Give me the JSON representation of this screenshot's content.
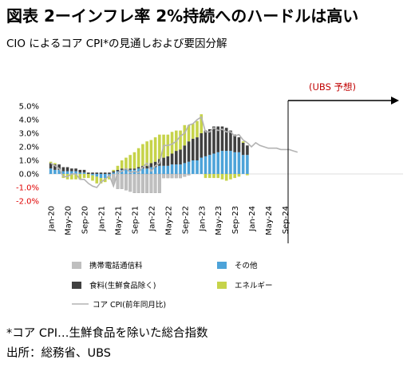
{
  "title": "図表 2ーインフレ率 2%持続へのハードルは高い",
  "subtitle": "CIO によるコア CPI*の見通しおよび要因分解",
  "footnote": "*コア CPI…生鮮食品を除いた総合指数",
  "source": "出所：総務省、UBS",
  "forecast_label": "(UBS 予想)",
  "colors": {
    "mobile": "#bfbfbf",
    "other": "#4da3d9",
    "food": "#404040",
    "energy": "#c6d34a",
    "line": "#b3b3b3",
    "negative_tick": "#e00000",
    "forecast_text": "#c00000"
  },
  "chart_data": {
    "type": "bar",
    "stacked": true,
    "ylim": [
      -2.0,
      5.0
    ],
    "y_ticks": [
      "5.0%",
      "4.0%",
      "3.0%",
      "2.0%",
      "1.0%",
      "0.0%",
      "-1.0%",
      "-2.0%"
    ],
    "x_tick_labels": [
      "Jan-20",
      "May-20",
      "Sep-20",
      "Jan-21",
      "May-21",
      "Sep-21",
      "Jan-22",
      "May-22",
      "Sep-22",
      "Jan-23",
      "May-23",
      "Sep-23",
      "Jan-24",
      "May-24",
      "Sep-24"
    ],
    "legend": [
      "携帯電話通信料",
      "その他",
      "食料(生鮮食品除く)",
      "エネルギー",
      "コア CPI(前年同月比)"
    ],
    "months": [
      "2020-01",
      "2020-02",
      "2020-03",
      "2020-04",
      "2020-05",
      "2020-06",
      "2020-07",
      "2020-08",
      "2020-09",
      "2020-10",
      "2020-11",
      "2020-12",
      "2021-01",
      "2021-02",
      "2021-03",
      "2021-04",
      "2021-05",
      "2021-06",
      "2021-07",
      "2021-08",
      "2021-09",
      "2021-10",
      "2021-11",
      "2021-12",
      "2022-01",
      "2022-02",
      "2022-03",
      "2022-04",
      "2022-05",
      "2022-06",
      "2022-07",
      "2022-08",
      "2022-09",
      "2022-10",
      "2022-11",
      "2022-12",
      "2023-01",
      "2023-02",
      "2023-03",
      "2023-04",
      "2023-05",
      "2023-06",
      "2023-07",
      "2023-08",
      "2023-09",
      "2023-10",
      "2023-11",
      "2023-12"
    ],
    "series": [
      {
        "name": "携帯電話通信料",
        "values": [
          0,
          0,
          0,
          0,
          0,
          0,
          0,
          0,
          0,
          0,
          0,
          0,
          0,
          0,
          0,
          -0.7,
          -1.1,
          -1.1,
          -1.2,
          -1.3,
          -1.4,
          -1.4,
          -1.4,
          -1.4,
          -1.4,
          -1.4,
          -1.4,
          -0.3,
          -0.3,
          -0.3,
          -0.3,
          -0.3,
          -0.2,
          -0.1,
          0,
          0,
          0,
          0,
          0,
          0,
          0,
          0,
          0,
          0,
          0,
          0,
          0,
          0
        ]
      },
      {
        "name": "その他",
        "values": [
          0.4,
          0.3,
          0.3,
          0.2,
          0.2,
          0.2,
          0.2,
          0.1,
          0.1,
          0,
          -0.1,
          -0.2,
          -0.3,
          -0.3,
          -0.2,
          0.1,
          0.2,
          0.3,
          0.3,
          0.3,
          0.3,
          0.4,
          0.4,
          0.4,
          0.5,
          0.5,
          0.6,
          0.6,
          0.6,
          0.7,
          0.7,
          0.7,
          0.8,
          0.9,
          1.0,
          1.0,
          1.2,
          1.3,
          1.4,
          1.5,
          1.6,
          1.7,
          1.7,
          1.7,
          1.6,
          1.6,
          1.4,
          1.4
        ]
      },
      {
        "name": "食料(生鮮食品除く)",
        "values": [
          0.4,
          0.4,
          0.4,
          0.3,
          0.3,
          0.2,
          0.2,
          0.2,
          0.2,
          0.1,
          0.1,
          0.1,
          0.1,
          0.1,
          0.1,
          0.1,
          0.1,
          0.1,
          0.1,
          0.1,
          0.1,
          0.1,
          0.2,
          0.2,
          0.3,
          0.4,
          0.5,
          0.6,
          0.7,
          0.8,
          1.0,
          1.1,
          1.3,
          1.5,
          1.6,
          1.7,
          1.8,
          1.9,
          1.9,
          2.0,
          1.9,
          1.8,
          1.7,
          1.5,
          1.3,
          1.1,
          0.9,
          0.7
        ]
      },
      {
        "name": "エネルギー",
        "values": [
          0.1,
          0.1,
          0,
          -0.3,
          -0.4,
          -0.4,
          -0.4,
          -0.4,
          -0.3,
          -0.3,
          -0.4,
          -0.5,
          -0.4,
          -0.3,
          -0.2,
          0.1,
          0.3,
          0.6,
          0.8,
          1.0,
          1.2,
          1.4,
          1.6,
          1.8,
          1.7,
          1.8,
          1.8,
          1.7,
          1.6,
          1.6,
          1.5,
          1.4,
          1.5,
          1.2,
          1.1,
          1.2,
          1.4,
          -0.3,
          -0.3,
          -0.3,
          -0.3,
          -0.4,
          -0.5,
          -0.4,
          -0.3,
          -0.2,
          0.1,
          -0.1
        ]
      }
    ],
    "core_cpi_line": {
      "name": "コア CPI(前年同月比)",
      "actual": [
        0.8,
        0.6,
        0.4,
        -0.2,
        -0.2,
        0,
        0,
        -0.4,
        -0.4,
        -0.7,
        -0.9,
        -1.0,
        -0.6,
        -0.4,
        -0.1,
        -0.9,
        0.1,
        0.2,
        0.4,
        0.1,
        0.2,
        0.1,
        0.5,
        0.8,
        0.2,
        0.6,
        0.8,
        2.1,
        2.1,
        2.2,
        2.4,
        2.8,
        3.0,
        3.6,
        3.7,
        4.0,
        4.2,
        3.1,
        3.1,
        3.4,
        3.2,
        3.3,
        3.1,
        3.1,
        2.8,
        2.9,
        2.5,
        2.3
      ],
      "forecast": [
        2.0,
        2.3,
        2.1,
        2.0,
        1.9,
        1.9,
        1.9,
        1.8,
        1.8,
        1.8,
        1.7,
        1.6
      ]
    }
  }
}
